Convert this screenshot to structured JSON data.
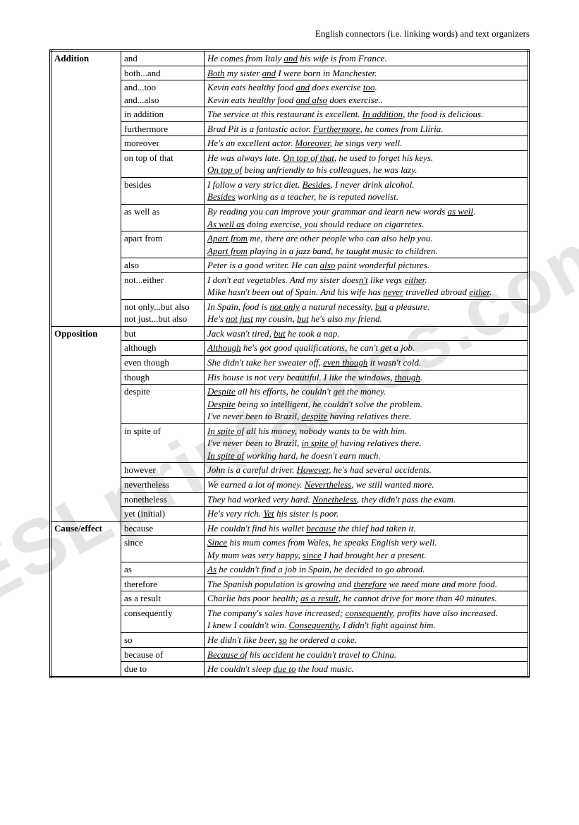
{
  "page_title": "English connectors (i.e. linking words) and text organizers",
  "watermark": "ESLprintables.com",
  "categories": [
    {
      "name": "Addition",
      "rows": [
        {
          "connector": "and",
          "example": "He comes from Italy <u>and</u> his wife is from France."
        },
        {
          "connector": "both...and",
          "example": "<u>Both</u> my sister <u>and</u> I were born in Manchester."
        },
        {
          "connector": "and...too<br>and...also",
          "example": "Kevin eats healthy food <u>and</u> does exercise <u>too</u>.<br>Kevin eats healthy food <u>and also</u> does exercise.."
        },
        {
          "connector": "in addition",
          "example": "The service at this restaurant is excellent. <u>In addition</u>, the food is delicious."
        },
        {
          "connector": "furthermore",
          "example": "Brad Pit is a fantastic actor. <u>Furthermore</u>, he comes from Llíria."
        },
        {
          "connector": "moreover",
          "example": "He's an excellent actor. <u>Moreover</u>, he sings very well."
        },
        {
          "connector": "on top of that",
          "example": "He was always late. <u>On top of that</u>, he used to forget his keys.<br><u>On top of</u> being unfriendly to his colleagues, he was lazy."
        },
        {
          "connector": "besides",
          "example": "I follow a very strict diet. <u>Besides</u>, I never drink alcohol.<br><u>Besides</u> working as a teacher, he is reputed novelist."
        },
        {
          "connector": "as well as",
          "example": "By reading you can improve your grammar and learn new words <u>as well</u>.<br><u>As well as</u> doing exercise, you should reduce on cigarretes."
        },
        {
          "connector": "apart from",
          "example": "<u>Apart from</u> me, there are other people who can also help you.<br><u>Apart from</u> playing in a jazz band, he taught music to children."
        },
        {
          "connector": "also",
          "example": "Peter is a good writer. He can <u>also</u> paint wonderful pictures."
        },
        {
          "connector": "not...either",
          "example": "I don't eat vegetables. And my sister does<u>n't</u> like vegs <u>either</u>.<br>Mike hasn't been out of Spain. And his wife has <u>never</u> travelled abroad <u>either</u>."
        },
        {
          "connector": "not only...but also<br>not just...but also",
          "example": "In Spain, food is <u>not only</u> a natural necessity, <u>but</u> a pleasure.<br>He's <u>not just</u> my cousin, <u>but</u> he's also my friend."
        }
      ]
    },
    {
      "name": "Opposition",
      "rows": [
        {
          "connector": "but",
          "example": "Jack wasn't tired, <u>but</u> he took a nap."
        },
        {
          "connector": "although",
          "example": "<u>Although</u> he's got good qualifications, he can't get a job."
        },
        {
          "connector": "even though",
          "example": "She didn't take her sweater off, <u>even though</u> it wasn't cold."
        },
        {
          "connector": "though",
          "example": "His house is not very beautiful. I like the windows, <u>though</u>."
        },
        {
          "connector": "despite",
          "example": "<u>Despite</u> all his efforts, he couldn't get the money.<br><u>Despite</u> being so intelligent, he couldn't solve the problem.<br>I've never been to Brazil, <u>despite</u> having relatives there."
        },
        {
          "connector": "in spite of",
          "example": "<u>In spite of</u> all his money, nobody wants to be with him.<br>I've never been to Brazil, <u>in spite of</u> having relatives there.<br><u>In spite of</u> working hard, he doesn't earn much."
        },
        {
          "connector": "however",
          "example": "John is a careful driver. <u>However</u>, he's had several accidents."
        },
        {
          "connector": "nevertheless",
          "example": "We earned a lot of money. <u>Nevertheless</u>, we still wanted more."
        },
        {
          "connector": "nonetheless",
          "example": "They had worked very hard. <u>Nonetheless</u>, they didn't pass the exam."
        },
        {
          "connector": "yet (initial)",
          "example": "He's very rich. <u>Yet</u> his sister is poor."
        }
      ]
    },
    {
      "name": "Cause/effect",
      "rows": [
        {
          "connector": "because",
          "example": "He couldn't find his wallet <u>because</u> the thief had taken it."
        },
        {
          "connector": "since",
          "example": "<u>Since</u> his mum comes from Wales, he speaks English very well.<br>My mum was very happy, <u>since</u> I had brought her a present."
        },
        {
          "connector": "as",
          "example": "<u>As</u> he couldn't find a job in Spain, he decided to go abroad."
        },
        {
          "connector": "therefore",
          "example": "The Spanish population is growing and <u>therefore</u> we need more and more food."
        },
        {
          "connector": "as a result",
          "example": "Charlie has poor health; <u>as a result</u>, he cannot drive for more than 40 minutes."
        },
        {
          "connector": "consequently",
          "example": "The company's sales have increased; <u>consequently</u>, profits have also increased.<br>I knew I couldn't win. <u>Consequently</u>, I didn't fight against him."
        },
        {
          "connector": "so",
          "example": "He didn't like beer, <u>so</u> he ordered a coke."
        },
        {
          "connector": "because of",
          "example": "<u>Because of</u> his accident he couldn't travel to China."
        },
        {
          "connector": "due to",
          "example": "He couldn't sleep <u>due to</u> the loud music."
        }
      ]
    }
  ]
}
